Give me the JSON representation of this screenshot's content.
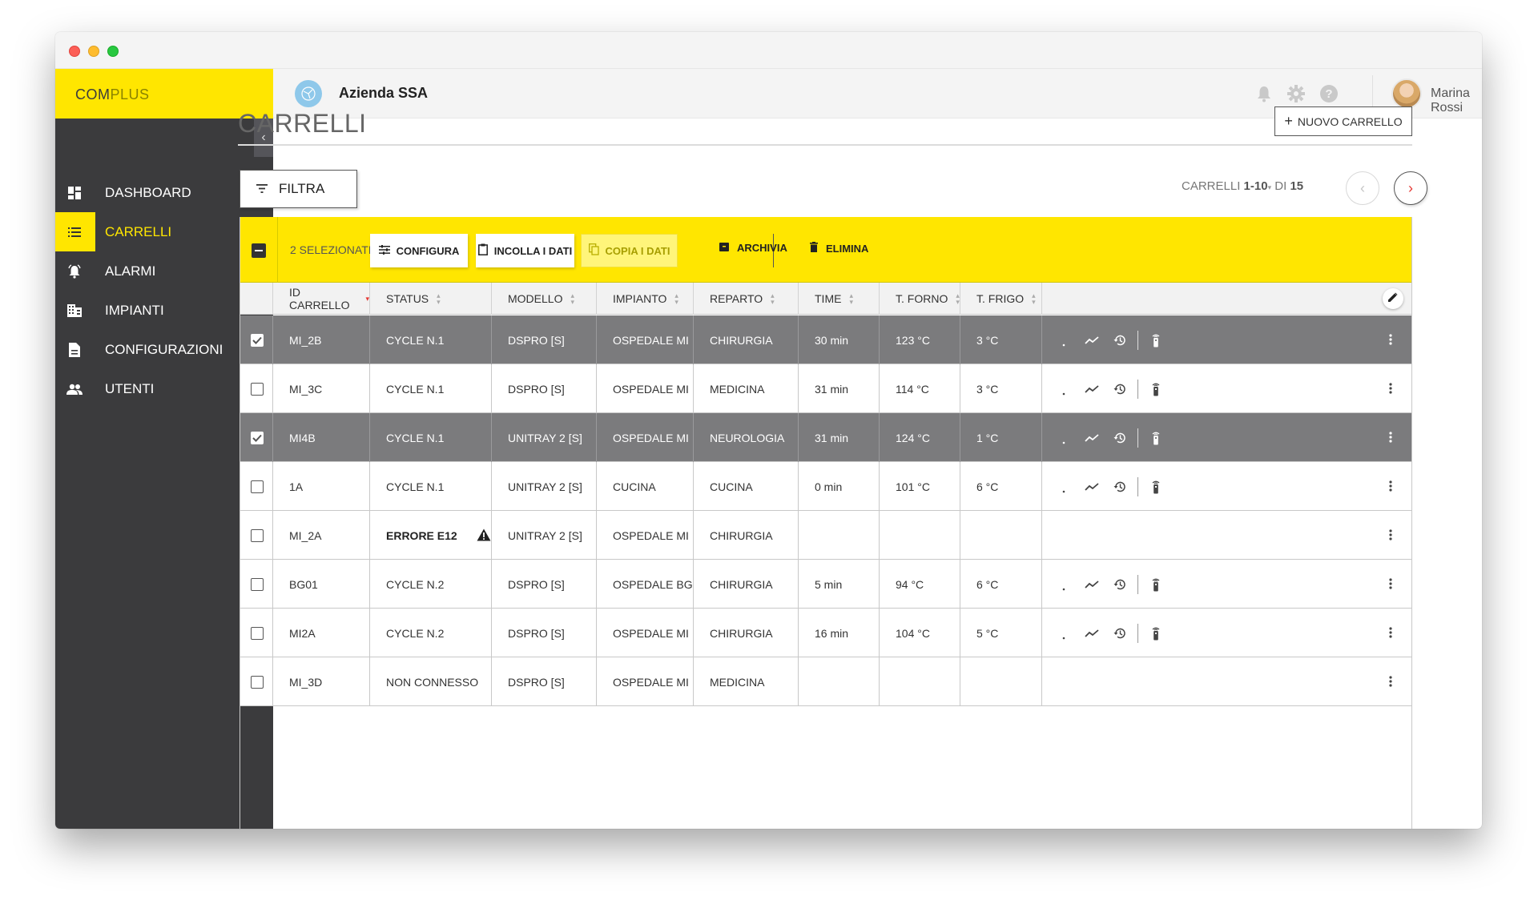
{
  "brand": {
    "bold": "COM",
    "thin": "PLUS"
  },
  "sidebar": {
    "collapse": "‹",
    "items": [
      {
        "label": "DASHBOARD",
        "icon": "dashboard-icon",
        "active": false
      },
      {
        "label": "CARRELLI",
        "icon": "list-icon",
        "active": true
      },
      {
        "label": "ALARMI",
        "icon": "alarm-bell-icon",
        "active": false
      },
      {
        "label": "IMPIANTI",
        "icon": "building-icon",
        "active": false
      },
      {
        "label": "CONFIGURAZIONI",
        "icon": "document-icon",
        "active": false
      },
      {
        "label": "UTENTI",
        "icon": "users-icon",
        "active": false
      }
    ]
  },
  "header": {
    "org_name": "Azienda SSA",
    "user_name": "Marina Rossi",
    "icons": [
      "bell-icon",
      "gear-icon",
      "help-icon"
    ]
  },
  "page": {
    "title": "CARRELLI",
    "new_button": "NUOVO CARRELLO",
    "filter_button": "FILTRA",
    "pager": {
      "label": "CARRELLI",
      "range": "1-10",
      "of": "DI",
      "total": "15"
    }
  },
  "actionbar": {
    "count": "2 SELEZIONATI",
    "configure": "CONFIGURA",
    "paste": "INCOLLA I DATI",
    "copy": "COPIA I DATI",
    "archive": "ARCHIVIA",
    "delete": "ELIMINA"
  },
  "columns": {
    "id": "ID CARRELLO",
    "status": "STATUS",
    "model": "MODELLO",
    "plant": "IMPIANTO",
    "dept": "REPARTO",
    "time": "TIME",
    "oven": "T. FORNO",
    "fridge": "T. FRIGO"
  },
  "rows": [
    {
      "id": "MI_2B",
      "status": "CYCLE N.1",
      "model": "DSPRO [S]",
      "plant": "OSPEDALE MI",
      "dept": "CHIRURGIA",
      "time": "30 min",
      "oven": "123 °C",
      "fridge": "3 °C",
      "selected": true
    },
    {
      "id": "MI_3C",
      "status": "CYCLE N.1",
      "model": "DSPRO [S]",
      "plant": "OSPEDALE MI",
      "dept": "MEDICINA",
      "time": "31 min",
      "oven": "114 °C",
      "fridge": "3 °C",
      "selected": false
    },
    {
      "id": "MI4B",
      "status": "CYCLE N.1",
      "model": "UNITRAY 2 [S]",
      "plant": "OSPEDALE MI",
      "dept": "NEUROLOGIA",
      "time": "31 min",
      "oven": "124 °C",
      "fridge": "1 °C",
      "selected": true
    },
    {
      "id": "1A",
      "status": "CYCLE N.1",
      "model": "UNITRAY 2 [S]",
      "plant": "CUCINA",
      "dept": "CUCINA",
      "time": "0 min",
      "oven": "101 °C",
      "fridge": "6 °C",
      "selected": false
    },
    {
      "id": "MI_2A",
      "status": "ERRORE E12",
      "model": "UNITRAY 2 [S]",
      "plant": "OSPEDALE MI",
      "dept": "CHIRURGIA",
      "time": "",
      "oven": "",
      "fridge": "",
      "selected": false
    },
    {
      "id": "BG01",
      "status": "CYCLE N.2",
      "model": "DSPRO [S]",
      "plant": "OSPEDALE BG",
      "dept": "CHIRURGIA",
      "time": "5 min",
      "oven": "94 °C",
      "fridge": "6 °C",
      "selected": false
    },
    {
      "id": "MI2A",
      "status": "CYCLE N.2",
      "model": "DSPRO [S]",
      "plant": "OSPEDALE MI",
      "dept": "CHIRURGIA",
      "time": "16 min",
      "oven": "104 °C",
      "fridge": "5 °C",
      "selected": false
    },
    {
      "id": "MI_3D",
      "status": "NON CONNESSO",
      "model": "DSPRO [S]",
      "plant": "OSPEDALE MI",
      "dept": "MEDICINA",
      "time": "",
      "oven": "",
      "fridge": "",
      "selected": false
    }
  ],
  "colors": {
    "accent": "#ffe600",
    "sidebar": "#3b3b3d",
    "selected_row": "#7b7b7d",
    "sort_active": "#e53935"
  }
}
